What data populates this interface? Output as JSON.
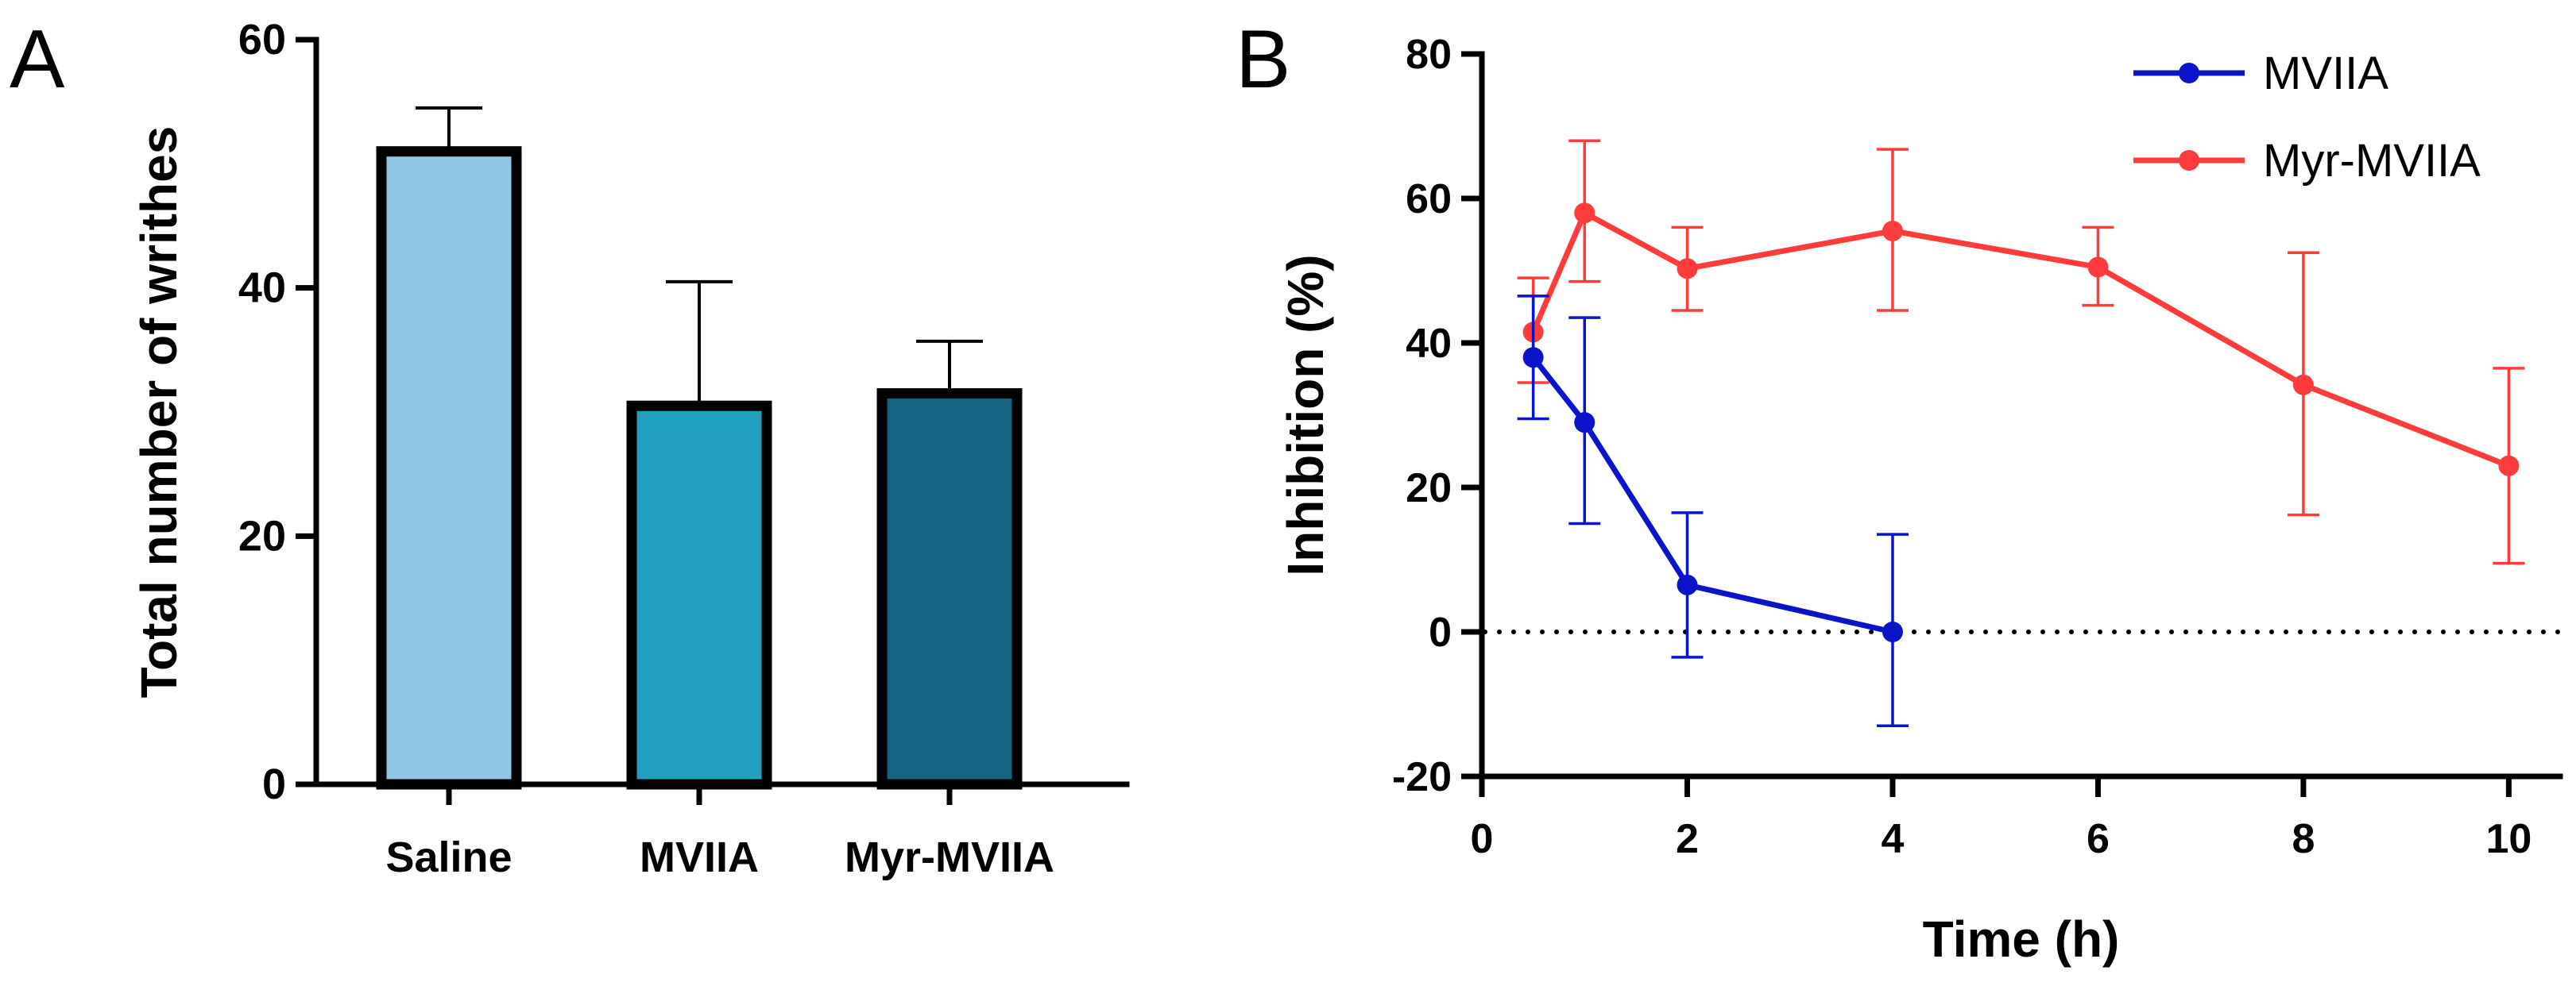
{
  "panel_a": {
    "letter": "A"
  },
  "panel_b": {
    "letter": "B"
  },
  "chart_data": [
    {
      "type": "bar",
      "categories": [
        "Saline",
        "MVIIA",
        "Myr-MVIIA"
      ],
      "values": [
        51,
        30.5,
        31.5
      ],
      "error_upper": [
        54.5,
        40.5,
        35.7
      ],
      "colors": [
        "#8fc7e8",
        "#219fbf",
        "#166482"
      ],
      "edge_color": "#000000",
      "title": "",
      "xlabel": "",
      "ylabel": "Total number of writhes",
      "ylim": [
        0,
        60
      ],
      "yticks": [
        0,
        20,
        40,
        60
      ],
      "ytick_labels": [
        "0",
        "20",
        "40",
        "60"
      ],
      "grid": false
    },
    {
      "type": "line",
      "title": "",
      "xlabel": "Time (h)",
      "ylabel": "Inhibition (%)",
      "xlim": [
        0,
        10.5
      ],
      "ylim": [
        -20,
        80
      ],
      "xticks": [
        0,
        2,
        4,
        6,
        8,
        10
      ],
      "xtick_labels": [
        "0",
        "2",
        "4",
        "6",
        "8",
        "10"
      ],
      "yticks": [
        -20,
        0,
        20,
        40,
        60,
        80
      ],
      "ytick_labels": [
        "-20",
        "0",
        "20",
        "40",
        "60",
        "80"
      ],
      "reference_line": {
        "y": 0,
        "style": "dotted"
      },
      "legend_position": "top-right",
      "grid": false,
      "series": [
        {
          "name": "MVIIA",
          "color": "#0a14c8",
          "x": [
            0.5,
            1,
            2,
            4
          ],
          "y": [
            38,
            29,
            6.5,
            0
          ],
          "err_low": [
            29.5,
            15,
            -3.5,
            -13
          ],
          "err_high": [
            46.5,
            43.5,
            16.5,
            13.5
          ]
        },
        {
          "name": "Myr-MVIIA",
          "color": "#ff3b3b",
          "x": [
            0.5,
            1,
            2,
            4,
            6,
            8,
            10
          ],
          "y": [
            41.5,
            58,
            50.3,
            55.5,
            50.5,
            34.2,
            23
          ],
          "err_low": [
            34.5,
            48.5,
            44.5,
            44.5,
            45.2,
            16.2,
            9.5
          ],
          "err_high": [
            49,
            68,
            56,
            66.8,
            56,
            52.5,
            36.5
          ]
        }
      ]
    }
  ]
}
